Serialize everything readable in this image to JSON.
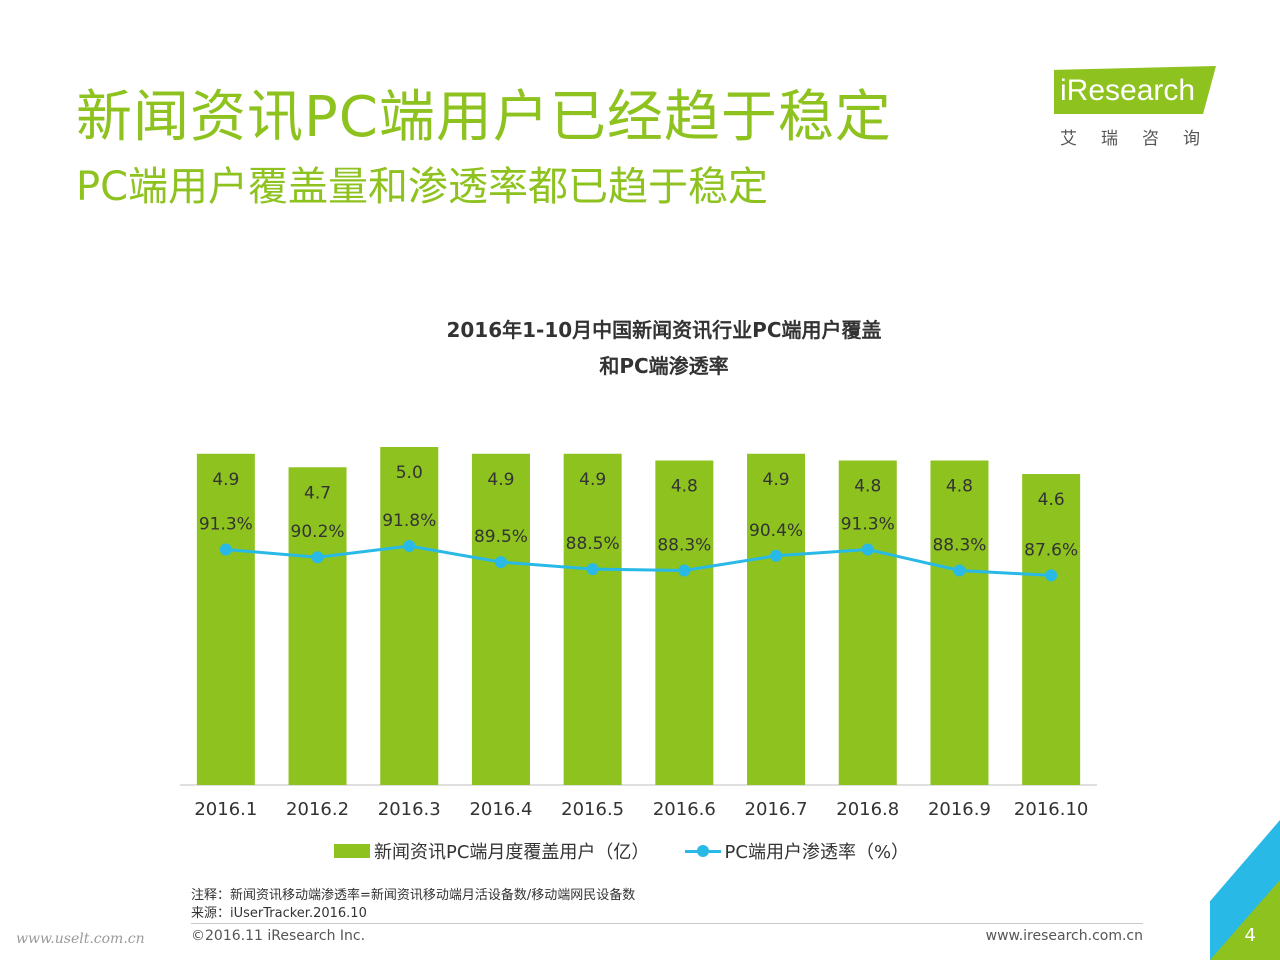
{
  "slide": {
    "title": "新闻资讯PC端用户已经趋于稳定",
    "subtitle": "PC端用户覆盖量和渗透率都已趋于稳定"
  },
  "logo": {
    "wordmark": "iResearch",
    "cn": "艾瑞咨询"
  },
  "chart_data": {
    "type": "bar",
    "title": [
      "2016年1-10月中国新闻资讯行业PC端用户覆盖",
      "和PC端渗透率"
    ],
    "categories": [
      "2016.1",
      "2016.2",
      "2016.3",
      "2016.4",
      "2016.5",
      "2016.6",
      "2016.7",
      "2016.8",
      "2016.9",
      "2016.10"
    ],
    "series": [
      {
        "name": "新闻资讯PC端月度覆盖用户（亿）",
        "type": "bar",
        "color": "#8dc21f",
        "values": [
          4.9,
          4.7,
          5.0,
          4.9,
          4.9,
          4.8,
          4.9,
          4.8,
          4.8,
          4.6
        ],
        "labels": [
          "4.9",
          "4.7",
          "5.0",
          "4.9",
          "4.9",
          "4.8",
          "4.9",
          "4.8",
          "4.8",
          "4.6"
        ]
      },
      {
        "name": "PC端用户渗透率（%）",
        "type": "line",
        "color": "#29b9e6",
        "values": [
          91.3,
          90.2,
          91.8,
          89.5,
          88.5,
          88.3,
          90.4,
          91.3,
          88.3,
          87.6
        ],
        "labels": [
          "91.3%",
          "90.2%",
          "91.8%",
          "89.5%",
          "88.5%",
          "88.3%",
          "90.4%",
          "91.3%",
          "88.3%",
          "87.6%"
        ]
      }
    ],
    "legend_position": "bottom",
    "grid": false
  },
  "notes": {
    "note": "注释：新闻资讯移动端渗透率=新闻资讯移动端月活设备数/移动端网民设备数",
    "source": "来源：iUserTracker.2016.10"
  },
  "footer": {
    "copyright": "©2016.11 iResearch Inc.",
    "website": "www.iresearch.com.cn",
    "page_number": "4",
    "watermark": "www.uselt.com.cn"
  }
}
